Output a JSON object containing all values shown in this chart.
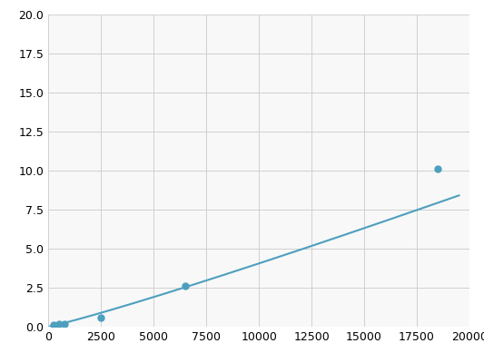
{
  "x": [
    250,
    500,
    750,
    2500,
    6500,
    18500
  ],
  "y": [
    0.1,
    0.15,
    0.2,
    0.6,
    2.6,
    10.1
  ],
  "line_color": "#4d9fbe",
  "marker_color": "#4d9fbe",
  "marker_size": 5,
  "xlim": [
    0,
    20000
  ],
  "ylim": [
    0,
    20.0
  ],
  "xticks": [
    0,
    2500,
    5000,
    7500,
    10000,
    12500,
    15000,
    17500,
    20000
  ],
  "yticks": [
    0.0,
    2.5,
    5.0,
    7.5,
    10.0,
    12.5,
    15.0,
    17.5,
    20.0
  ],
  "grid_color": "#d0d0d0",
  "background_color": "#f8f8f8",
  "fig_background": "#ffffff"
}
